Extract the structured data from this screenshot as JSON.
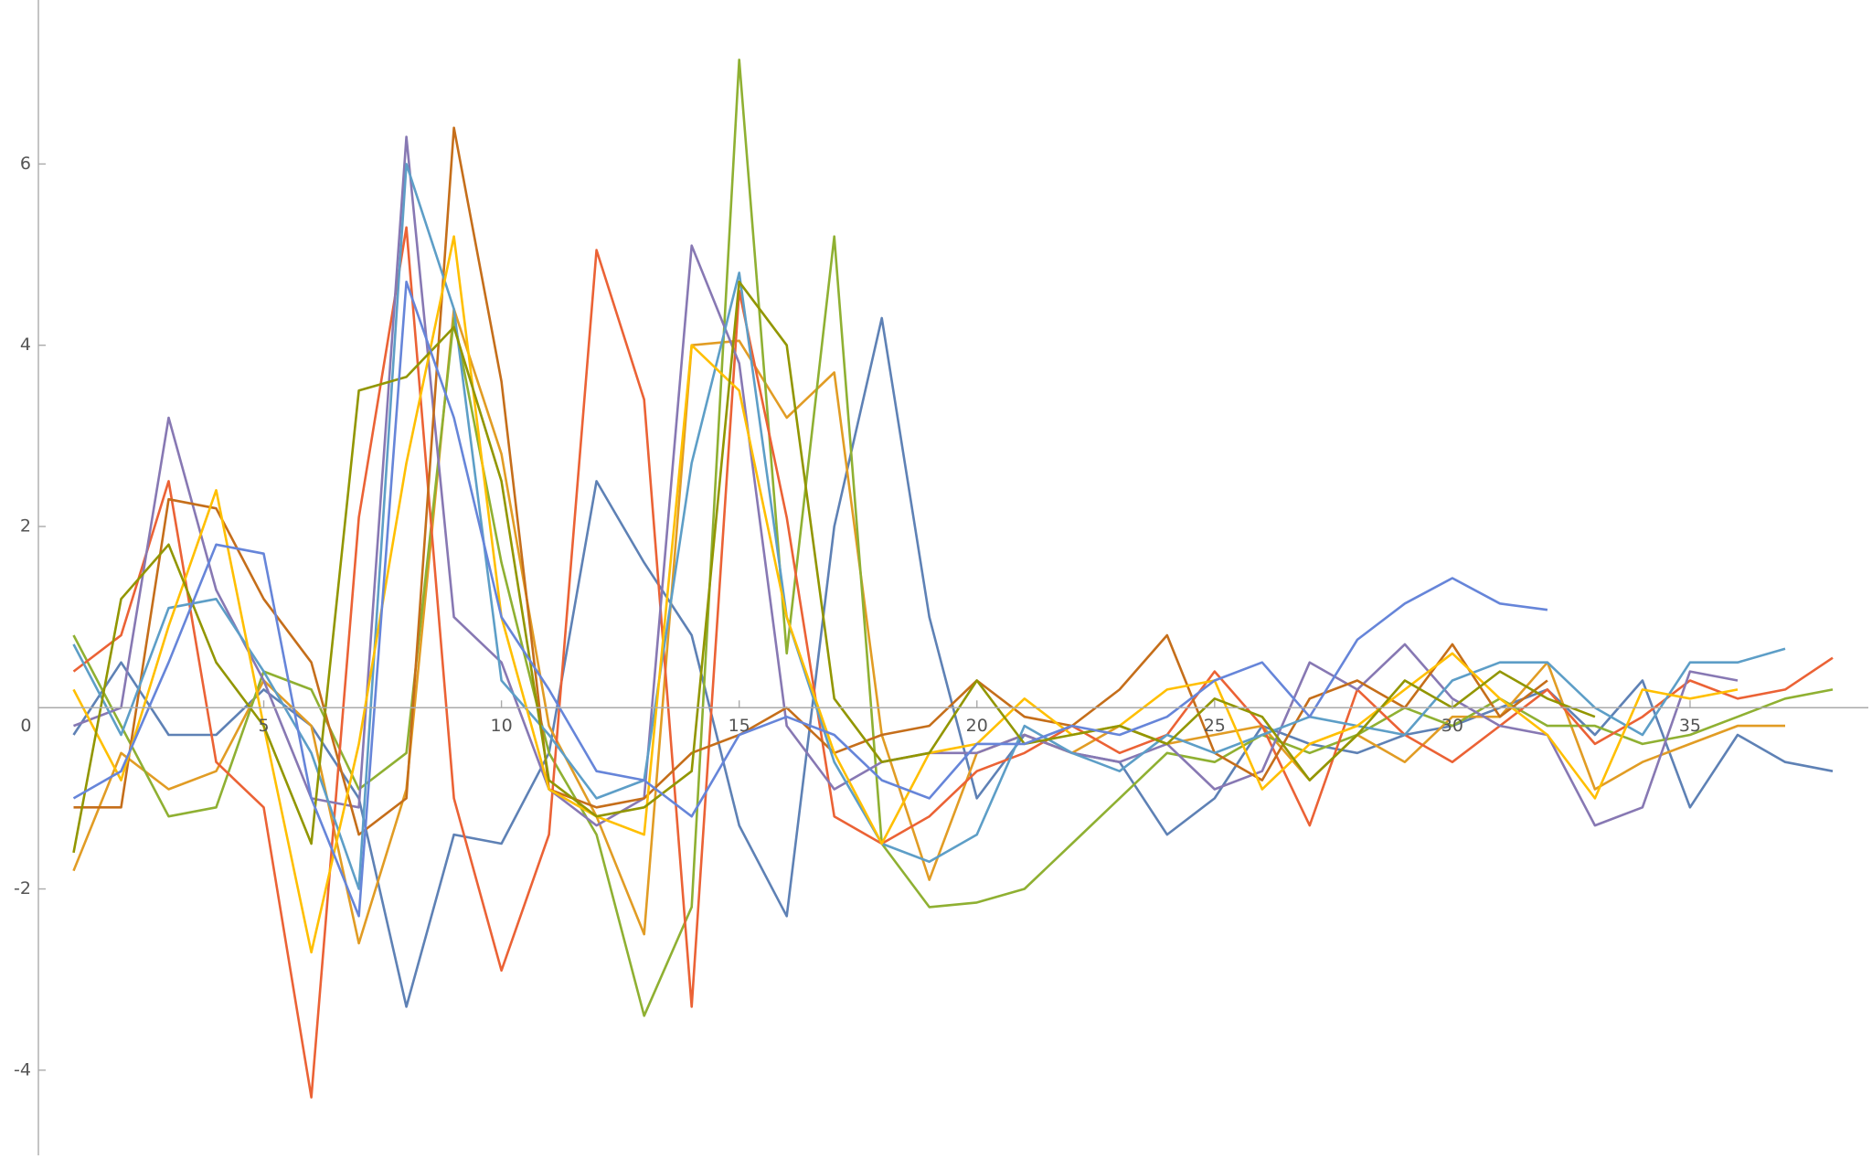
{
  "chart_data": {
    "type": "line",
    "x": [
      1,
      2,
      3,
      4,
      5,
      6,
      7,
      8,
      9,
      10,
      11,
      12,
      13,
      14,
      15,
      16,
      17,
      18,
      19,
      20,
      21,
      22,
      23,
      24,
      25,
      26,
      27,
      28,
      29,
      30,
      31,
      32,
      33,
      34,
      35,
      36,
      37,
      38
    ],
    "xlim": [
      0.26,
      38.75
    ],
    "xticks": [
      0,
      5,
      10,
      15,
      20,
      25,
      30,
      35
    ],
    "ylim": [
      -4.94,
      7.81
    ],
    "yticks": [
      -4,
      -2,
      2,
      4,
      6
    ],
    "series": [
      {
        "color": "#5E81B5",
        "values": [
          -0.3,
          0.5,
          -0.3,
          -0.3,
          0.2,
          -0.2,
          -1.0,
          -3.3,
          -1.4,
          -1.5,
          -0.5,
          2.5,
          1.6,
          0.8,
          -1.3,
          -2.3,
          2.0,
          4.3,
          1.0,
          -1.0,
          -0.3,
          -0.5,
          -0.6,
          -1.4,
          -1.0,
          -0.2,
          -0.4,
          -0.5,
          -0.3,
          -0.2,
          0.0,
          0.2,
          -0.3,
          0.3,
          -1.1,
          -0.3,
          -0.6,
          -0.7
        ]
      },
      {
        "color": "#E19C24",
        "values": [
          -1.8,
          -0.5,
          -0.9,
          -0.7,
          0.3,
          -0.2,
          -2.6,
          -0.9,
          4.4,
          2.8,
          -0.2,
          -1.2,
          -2.5,
          4.0,
          4.05,
          3.2,
          3.7,
          -0.3,
          -1.9,
          -0.5,
          -0.3,
          -0.5,
          -0.2,
          -0.4,
          -0.3,
          -0.2,
          -0.8,
          -0.3,
          -0.6,
          -0.1,
          -0.1,
          0.5,
          -0.9,
          -0.6,
          -0.4,
          -0.2,
          -0.2,
          null
        ]
      },
      {
        "color": "#8FB032",
        "values": [
          0.8,
          -0.2,
          -1.2,
          -1.1,
          0.4,
          0.2,
          -0.9,
          -0.5,
          4.3,
          1.6,
          -0.5,
          -1.4,
          -3.4,
          -2.2,
          7.15,
          0.6,
          5.2,
          -1.5,
          -2.2,
          -2.15,
          -2.0,
          -1.5,
          -1.0,
          -0.5,
          -0.6,
          -0.3,
          -0.5,
          -0.3,
          0.0,
          -0.2,
          0.1,
          -0.2,
          -0.2,
          -0.4,
          -0.3,
          -0.1,
          0.1,
          0.2
        ]
      },
      {
        "color": "#EB6235",
        "values": [
          0.4,
          0.8,
          2.5,
          -0.6,
          -1.1,
          -4.3,
          2.1,
          5.3,
          -1.0,
          -2.9,
          -1.4,
          5.05,
          3.4,
          -3.3,
          4.6,
          2.1,
          -1.2,
          -1.5,
          -1.2,
          -0.7,
          -0.5,
          -0.2,
          -0.5,
          -0.3,
          0.4,
          -0.2,
          -1.3,
          0.2,
          -0.3,
          -0.6,
          -0.2,
          0.2,
          -0.4,
          -0.1,
          0.3,
          0.1,
          0.2,
          0.55
        ]
      },
      {
        "color": "#8778B3",
        "values": [
          -0.2,
          0.0,
          3.2,
          1.3,
          0.3,
          -1.0,
          -1.1,
          6.3,
          1.0,
          0.5,
          -0.9,
          -1.3,
          -1.0,
          5.1,
          3.8,
          -0.2,
          -0.9,
          -0.6,
          -0.5,
          -0.5,
          -0.3,
          -0.5,
          -0.6,
          -0.4,
          -0.9,
          -0.7,
          0.5,
          0.2,
          0.7,
          0.1,
          -0.2,
          -0.3,
          -1.3,
          -1.1,
          0.4,
          0.3,
          null,
          null
        ]
      },
      {
        "color": "#C56E1A",
        "values": [
          -1.1,
          -1.1,
          2.3,
          2.2,
          1.2,
          0.5,
          -1.4,
          -1.0,
          6.4,
          3.6,
          -0.9,
          -1.1,
          -1.0,
          -0.5,
          -0.3,
          0.0,
          -0.5,
          -0.3,
          -0.2,
          0.3,
          -0.1,
          -0.2,
          0.2,
          0.8,
          -0.5,
          -0.8,
          0.1,
          0.3,
          0.0,
          0.7,
          -0.1,
          0.3,
          null,
          null,
          null,
          null,
          null,
          null
        ]
      },
      {
        "color": "#5D9EC7",
        "values": [
          0.7,
          -0.3,
          1.1,
          1.2,
          0.4,
          -0.5,
          -2.0,
          6.0,
          4.4,
          0.3,
          -0.3,
          -1.0,
          -0.8,
          2.7,
          4.8,
          1.0,
          -0.6,
          -1.5,
          -1.7,
          -1.4,
          -0.2,
          -0.5,
          -0.7,
          -0.3,
          -0.5,
          -0.3,
          -0.1,
          -0.2,
          -0.3,
          0.3,
          0.5,
          0.5,
          0.0,
          -0.3,
          0.5,
          0.5,
          0.65,
          null
        ]
      },
      {
        "color": "#FFBF00",
        "values": [
          0.2,
          -0.8,
          0.9,
          2.4,
          -0.2,
          -2.7,
          -0.4,
          2.7,
          5.2,
          1.0,
          -0.9,
          -1.2,
          -1.4,
          4.0,
          3.5,
          1.0,
          -0.5,
          -1.5,
          -0.5,
          -0.4,
          0.1,
          -0.3,
          -0.2,
          0.2,
          0.3,
          -0.9,
          -0.4,
          -0.2,
          0.2,
          0.6,
          0.1,
          -0.3,
          -1.0,
          0.2,
          0.1,
          0.2,
          null,
          null
        ]
      },
      {
        "color": "#929600",
        "values": [
          -1.6,
          1.2,
          1.8,
          0.5,
          -0.2,
          -1.5,
          3.5,
          3.65,
          4.2,
          2.5,
          -0.8,
          -1.2,
          -1.1,
          -0.7,
          4.7,
          4.0,
          0.1,
          -0.6,
          -0.5,
          0.3,
          -0.4,
          -0.3,
          -0.2,
          -0.4,
          0.1,
          -0.1,
          -0.8,
          -0.3,
          0.3,
          0.0,
          0.4,
          0.1,
          -0.1,
          null,
          null,
          null,
          null,
          null
        ]
      },
      {
        "color": "#6685D9",
        "values": [
          -1.0,
          -0.7,
          0.5,
          1.8,
          1.7,
          -1.0,
          -2.3,
          4.7,
          3.2,
          1.0,
          0.2,
          -0.7,
          -0.8,
          -1.2,
          -0.3,
          -0.1,
          -0.3,
          -0.8,
          -1.0,
          -0.4,
          -0.4,
          -0.2,
          -0.3,
          -0.1,
          0.3,
          0.5,
          -0.1,
          0.75,
          1.15,
          1.43,
          1.15,
          1.08,
          null,
          null,
          null,
          null,
          null,
          null
        ]
      }
    ]
  }
}
